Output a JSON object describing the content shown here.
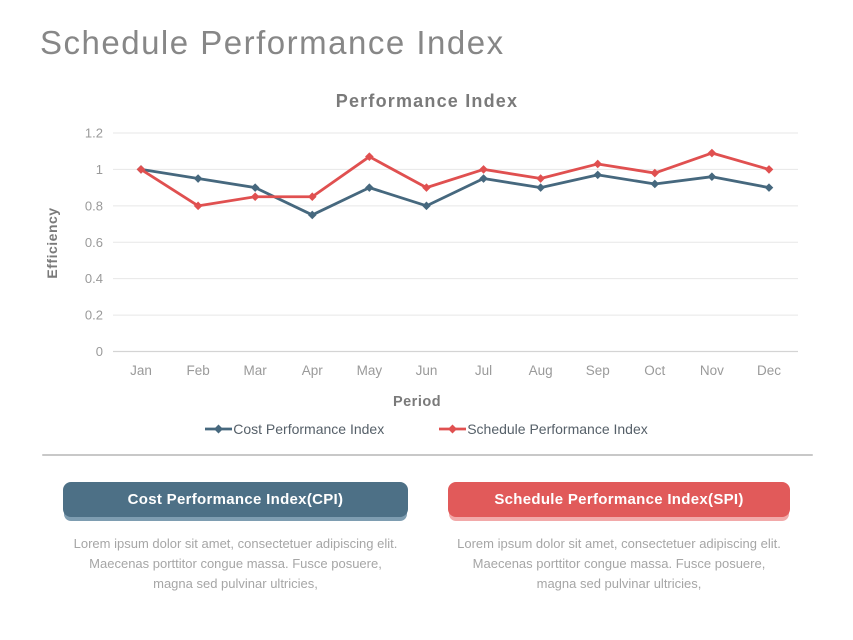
{
  "page": {
    "title": "Schedule Performance Index"
  },
  "chart_data": {
    "type": "line",
    "title": "Performance Index",
    "xlabel": "Period",
    "ylabel": "Efficiency",
    "categories": [
      "Jan",
      "Feb",
      "Mar",
      "Apr",
      "May",
      "Jun",
      "Jul",
      "Aug",
      "Sep",
      "Oct",
      "Nov",
      "Dec"
    ],
    "series": [
      {
        "name": "Cost Performance Index",
        "color": "#46687e",
        "values": [
          1.0,
          0.95,
          0.9,
          0.75,
          0.9,
          0.8,
          0.95,
          0.9,
          0.97,
          0.92,
          0.96,
          0.9
        ]
      },
      {
        "name": "Schedule Performance Index",
        "color": "#e05050",
        "values": [
          1.0,
          0.8,
          0.85,
          0.85,
          1.07,
          0.9,
          1.0,
          0.95,
          1.03,
          0.98,
          1.09,
          1.0
        ]
      }
    ],
    "ylim": [
      0,
      1.2
    ],
    "yticks": [
      "0",
      "0.2",
      "0.4",
      "0.6",
      "0.8",
      "1",
      "1.2"
    ],
    "grid": true,
    "legend_position": "bottom",
    "marker": "diamond",
    "colors": {
      "gridline": "#e7e7e7",
      "axis_line": "#d4d4d4",
      "tick_label": "#9a9a9a",
      "axis_title": "#7a7a7a",
      "chart_title": "#7a7a7a"
    }
  },
  "cards": [
    {
      "title": "Cost Performance Index(CPI)",
      "color": "#4d7086",
      "shadow": "#7e9db1",
      "body": "Lorem ipsum dolor sit amet, consectetuer adipiscing elit. Maecenas porttitor congue massa. Fusce posuere, magna sed pulvinar ultricies,"
    },
    {
      "title": "Schedule Performance Index(SPI)",
      "color": "#e15a5a",
      "shadow": "#f2a9a9",
      "body": "Lorem ipsum dolor sit amet, consectetuer adipiscing elit. Maecenas porttitor congue massa. Fusce posuere, magna sed pulvinar ultricies,"
    }
  ]
}
